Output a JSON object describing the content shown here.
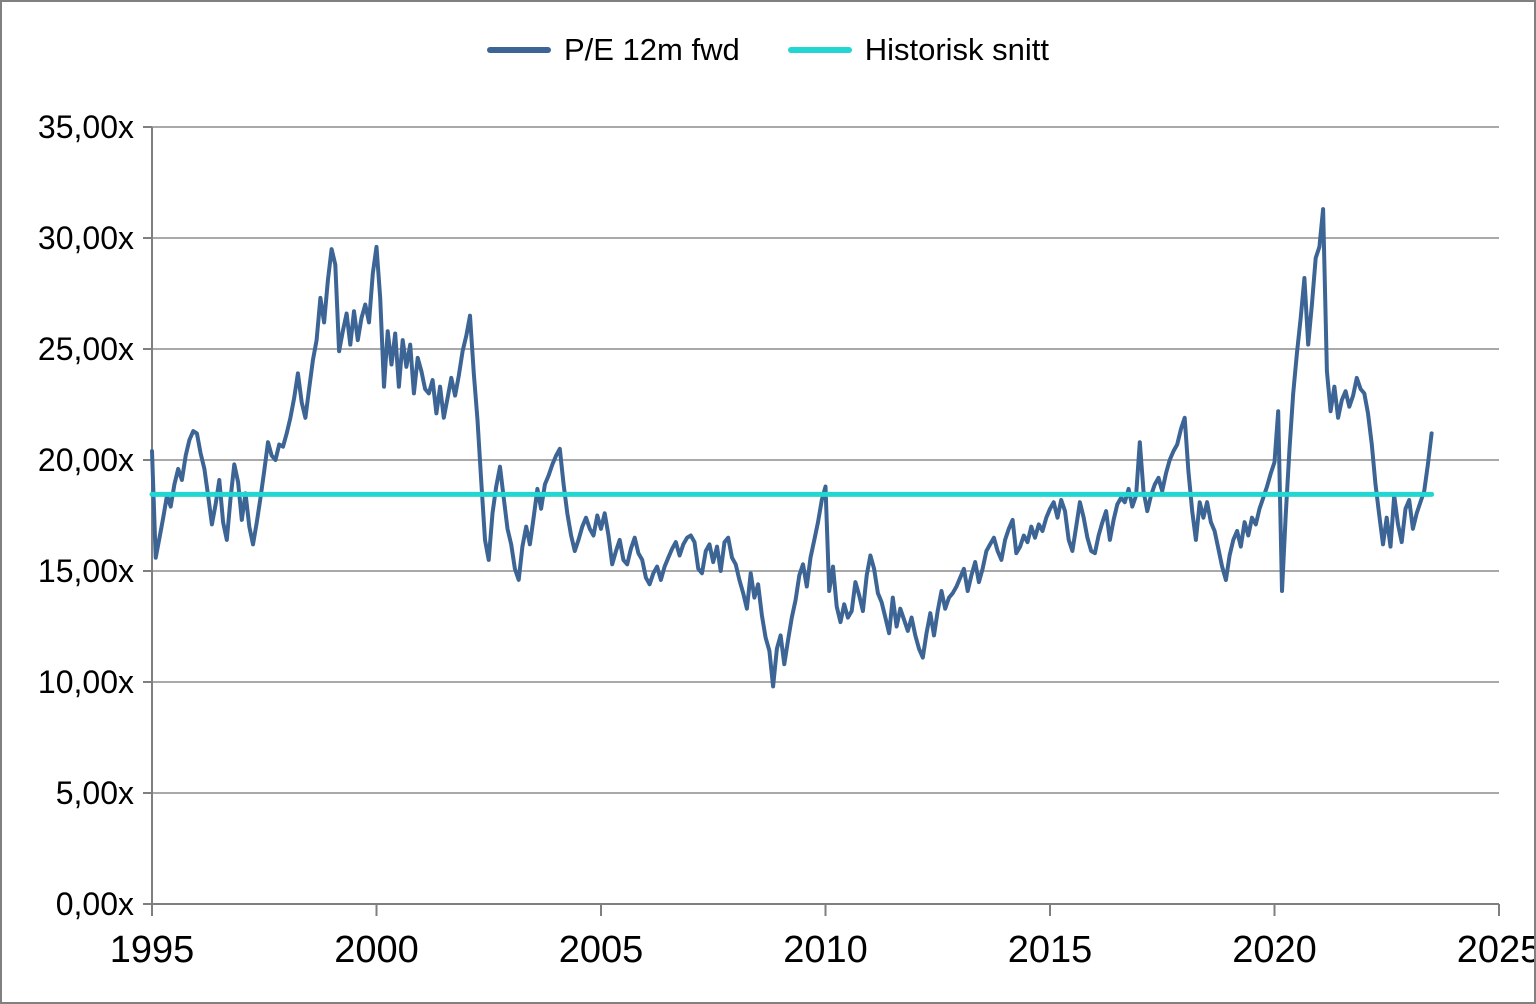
{
  "chart_data": {
    "type": "line",
    "title": "",
    "legend_position": "top-center",
    "number_format": "comma-decimal with x suffix",
    "legend": [
      {
        "label": "P/E 12m fwd",
        "color": "#3C6595"
      },
      {
        "label": "Historisk snitt",
        "color": "#22D6D2"
      }
    ],
    "x_axis": {
      "range": [
        1995,
        2025
      ],
      "ticks": [
        1995,
        2000,
        2005,
        2010,
        2015,
        2020,
        2025
      ],
      "labels": [
        "1995",
        "2000",
        "2005",
        "2010",
        "2015",
        "2020",
        "2025"
      ]
    },
    "y_axis": {
      "range": [
        0,
        35
      ],
      "ticks": [
        0,
        5,
        10,
        15,
        20,
        25,
        30,
        35
      ],
      "labels": [
        "0,00x",
        "5,00x",
        "10,00x",
        "15,00x",
        "20,00x",
        "25,00x",
        "30,00x",
        "35,00x"
      ],
      "grid": true
    },
    "colors": {
      "grid": "#A9A9A9",
      "axis": "#7F7F7F",
      "background": "#FFFFFF",
      "frame_border": "#808080"
    },
    "series": [
      {
        "name": "P/E 12m fwd",
        "color": "#3C6595",
        "stroke_width": 4,
        "start_x": 1995.0,
        "x_step": 0.08333333,
        "values": [
          20.4,
          15.6,
          16.5,
          17.4,
          18.4,
          17.9,
          18.9,
          19.6,
          19.1,
          20.2,
          20.9,
          21.3,
          21.2,
          20.3,
          19.6,
          18.4,
          17.1,
          18.0,
          19.1,
          17.2,
          16.4,
          18.3,
          19.8,
          19.0,
          17.3,
          18.5,
          17.0,
          16.2,
          17.2,
          18.3,
          19.5,
          20.8,
          20.2,
          20.0,
          20.7,
          20.6,
          21.2,
          21.9,
          22.8,
          23.9,
          22.6,
          21.9,
          23.2,
          24.5,
          25.4,
          27.3,
          26.2,
          28.1,
          29.5,
          28.8,
          24.9,
          25.8,
          26.6,
          25.2,
          26.7,
          25.4,
          26.4,
          27.0,
          26.2,
          28.4,
          29.6,
          27.3,
          23.3,
          25.8,
          24.3,
          25.7,
          23.3,
          25.4,
          24.2,
          25.2,
          23.0,
          24.6,
          24.0,
          23.2,
          23.0,
          23.6,
          22.1,
          23.3,
          21.9,
          22.8,
          23.7,
          22.9,
          23.8,
          24.9,
          25.6,
          26.5,
          23.9,
          21.8,
          19.0,
          16.4,
          15.5,
          17.6,
          18.8,
          19.7,
          18.3,
          16.9,
          16.2,
          15.1,
          14.6,
          16.1,
          17.0,
          16.2,
          17.4,
          18.7,
          17.8,
          18.9,
          19.3,
          19.8,
          20.2,
          20.5,
          18.9,
          17.6,
          16.6,
          15.9,
          16.4,
          17.0,
          17.4,
          16.9,
          16.6,
          17.5,
          16.9,
          17.6,
          16.6,
          15.3,
          15.9,
          16.4,
          15.5,
          15.3,
          16.0,
          16.5,
          15.8,
          15.5,
          14.7,
          14.4,
          14.9,
          15.2,
          14.6,
          15.2,
          15.6,
          16.0,
          16.3,
          15.7,
          16.2,
          16.5,
          16.6,
          16.3,
          15.1,
          14.9,
          15.9,
          16.2,
          15.4,
          16.1,
          15.0,
          16.3,
          16.5,
          15.6,
          15.3,
          14.6,
          14.0,
          13.3,
          14.9,
          13.8,
          14.4,
          13.0,
          12.0,
          11.4,
          9.8,
          11.5,
          12.1,
          10.8,
          11.9,
          12.9,
          13.7,
          14.8,
          15.3,
          14.3,
          15.6,
          16.4,
          17.2,
          18.2,
          18.8,
          14.1,
          15.2,
          13.4,
          12.7,
          13.5,
          12.9,
          13.2,
          14.5,
          13.9,
          13.2,
          14.8,
          15.7,
          15.1,
          14.0,
          13.6,
          12.9,
          12.2,
          13.8,
          12.5,
          13.3,
          12.8,
          12.3,
          12.9,
          12.1,
          11.5,
          11.1,
          12.2,
          13.1,
          12.1,
          13.2,
          14.1,
          13.3,
          13.8,
          14.0,
          14.3,
          14.7,
          15.1,
          14.1,
          14.8,
          15.4,
          14.5,
          15.1,
          15.9,
          16.2,
          16.5,
          15.9,
          15.5,
          16.4,
          16.9,
          17.3,
          15.8,
          16.1,
          16.6,
          16.3,
          17.0,
          16.5,
          17.1,
          16.8,
          17.4,
          17.8,
          18.1,
          17.4,
          18.2,
          17.7,
          16.4,
          15.9,
          17.0,
          18.1,
          17.4,
          16.5,
          15.9,
          15.8,
          16.6,
          17.2,
          17.7,
          16.4,
          17.3,
          18.0,
          18.3,
          18.1,
          18.7,
          17.9,
          18.4,
          20.8,
          18.6,
          17.7,
          18.4,
          18.9,
          19.2,
          18.6,
          19.4,
          20.0,
          20.4,
          20.7,
          21.4,
          21.9,
          19.5,
          17.7,
          16.4,
          18.1,
          17.4,
          18.1,
          17.2,
          16.8,
          16.0,
          15.2,
          14.6,
          15.7,
          16.4,
          16.8,
          16.1,
          17.2,
          16.6,
          17.4,
          17.1,
          17.8,
          18.3,
          18.8,
          19.4,
          19.9,
          22.2,
          14.1,
          17.5,
          20.5,
          23.0,
          24.8,
          26.4,
          28.2,
          25.2,
          27.0,
          29.1,
          29.6,
          31.3,
          24.0,
          22.2,
          23.3,
          21.9,
          22.7,
          23.1,
          22.4,
          22.9,
          23.7,
          23.2,
          23.0,
          22.1,
          20.7,
          18.9,
          17.5,
          16.2,
          17.4,
          16.1,
          18.4,
          17.1,
          16.3,
          17.8,
          18.2,
          16.9,
          17.6,
          18.1,
          18.6,
          19.8,
          21.2
        ]
      },
      {
        "name": "Historisk snitt",
        "color": "#22D6D2",
        "stroke_width": 5,
        "type": "constant",
        "value": 18.45,
        "x_start": 1995.0,
        "x_end": 2023.5
      }
    ]
  }
}
